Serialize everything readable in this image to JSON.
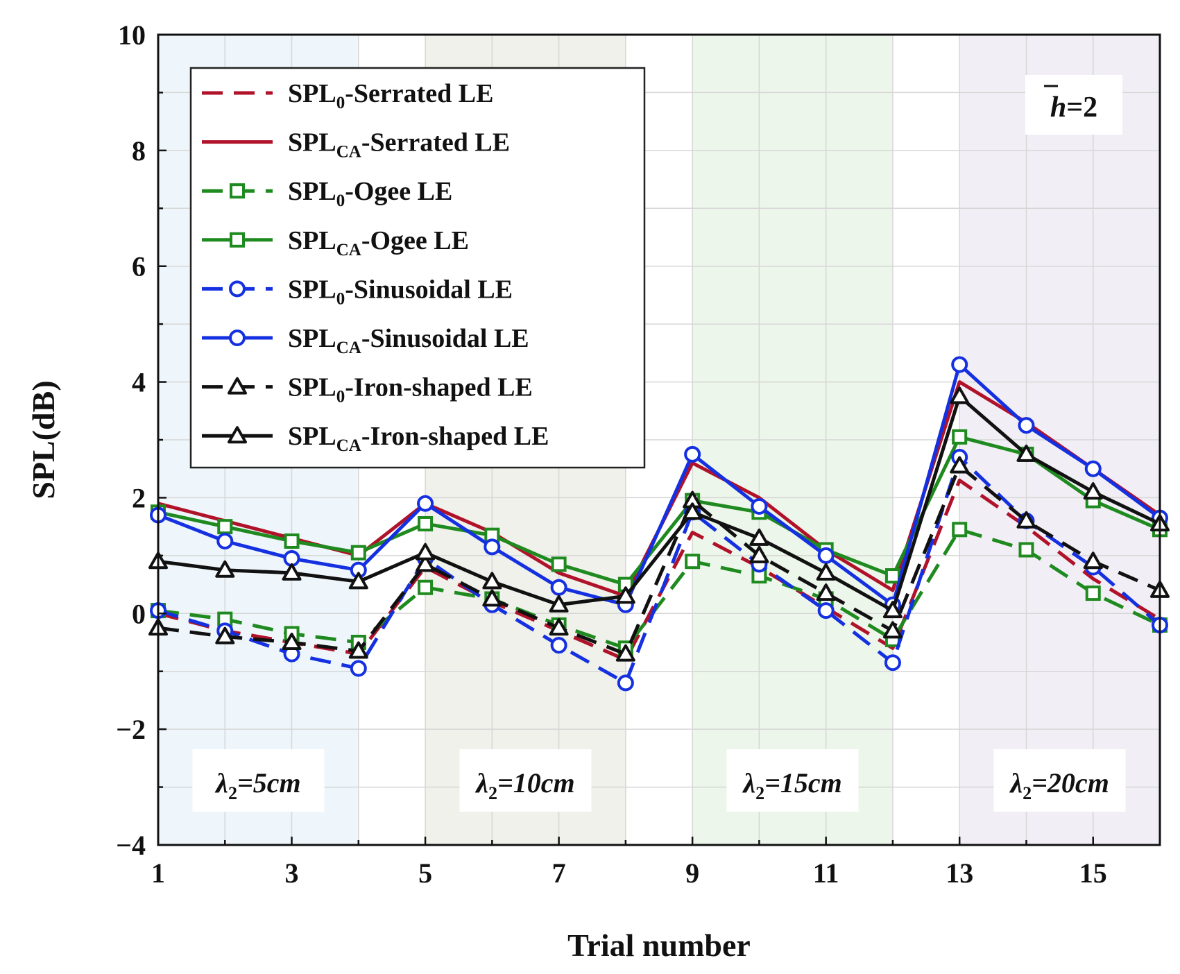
{
  "chart_data": {
    "type": "line",
    "title": "",
    "xlabel": "Trial number",
    "ylabel": "SPL(dB)",
    "xlim": [
      1,
      16
    ],
    "ylim": [
      -4,
      10
    ],
    "x_ticks": [
      1,
      3,
      5,
      7,
      9,
      11,
      13,
      15
    ],
    "y_ticks": [
      -4,
      -2,
      0,
      2,
      4,
      6,
      8,
      10
    ],
    "grid": true,
    "legend_position": "top-left",
    "x": [
      1,
      2,
      3,
      4,
      5,
      6,
      7,
      8,
      9,
      10,
      11,
      12,
      13,
      14,
      15,
      16
    ],
    "series": [
      {
        "name": "SPL0-Serrated LE",
        "sub": "0",
        "shape": "Serrated",
        "color": "#b0122a",
        "dashed": true,
        "marker": "none",
        "values": [
          0.0,
          -0.3,
          -0.5,
          -0.7,
          0.8,
          0.2,
          -0.3,
          -0.8,
          1.4,
          0.8,
          0.1,
          -0.6,
          2.3,
          1.5,
          0.6,
          -0.1
        ]
      },
      {
        "name": "SPLCA-Serrated LE",
        "sub": "CA",
        "shape": "Serrated",
        "color": "#b0122a",
        "dashed": false,
        "marker": "none",
        "values": [
          1.9,
          1.6,
          1.3,
          1.0,
          1.9,
          1.4,
          0.7,
          0.3,
          2.6,
          2.0,
          1.1,
          0.4,
          4.0,
          3.3,
          2.5,
          1.7
        ]
      },
      {
        "name": "SPL0-Ogee LE",
        "sub": "0",
        "shape": "Ogee",
        "color": "#1f8a1f",
        "dashed": true,
        "marker": "square",
        "values": [
          0.05,
          -0.1,
          -0.35,
          -0.5,
          0.45,
          0.25,
          -0.2,
          -0.6,
          0.9,
          0.65,
          0.25,
          -0.45,
          1.45,
          1.1,
          0.35,
          -0.2
        ]
      },
      {
        "name": "SPLCA-Ogee LE",
        "sub": "CA",
        "shape": "Ogee",
        "color": "#1f8a1f",
        "dashed": false,
        "marker": "square",
        "values": [
          1.75,
          1.5,
          1.25,
          1.05,
          1.55,
          1.35,
          0.85,
          0.5,
          1.95,
          1.75,
          1.1,
          0.65,
          3.05,
          2.75,
          1.95,
          1.45
        ]
      },
      {
        "name": "SPL0-Sinusoidal LE",
        "sub": "0",
        "shape": "Sinusoidal",
        "color": "#1430e0",
        "dashed": true,
        "marker": "circle",
        "values": [
          0.05,
          -0.3,
          -0.7,
          -0.95,
          0.95,
          0.15,
          -0.55,
          -1.2,
          1.75,
          0.85,
          0.05,
          -0.85,
          2.7,
          1.6,
          0.8,
          -0.2
        ]
      },
      {
        "name": "SPLCA-Sinusoidal LE",
        "sub": "CA",
        "shape": "Sinusoidal",
        "color": "#1430e0",
        "dashed": false,
        "marker": "circle",
        "values": [
          1.7,
          1.25,
          0.95,
          0.75,
          1.9,
          1.15,
          0.45,
          0.15,
          2.75,
          1.85,
          1.0,
          0.15,
          4.3,
          3.25,
          2.5,
          1.65
        ]
      },
      {
        "name": "SPL0-Iron-shaped LE",
        "sub": "0",
        "shape": "Iron-shaped",
        "color": "#111111",
        "dashed": true,
        "marker": "triangle",
        "values": [
          -0.25,
          -0.4,
          -0.5,
          -0.65,
          0.85,
          0.25,
          -0.25,
          -0.7,
          1.95,
          1.0,
          0.35,
          -0.3,
          2.55,
          1.6,
          0.9,
          0.4
        ]
      },
      {
        "name": "SPLCA-Iron-shaped LE",
        "sub": "CA",
        "shape": "Iron-shaped",
        "color": "#111111",
        "dashed": false,
        "marker": "triangle",
        "values": [
          0.9,
          0.75,
          0.7,
          0.55,
          1.05,
          0.55,
          0.15,
          0.3,
          1.75,
          1.3,
          0.7,
          0.05,
          3.75,
          2.75,
          2.1,
          1.55
        ]
      }
    ],
    "regions": [
      {
        "label_var": "λ",
        "label_sub": "2",
        "label_val": "=5cm",
        "x_start": 1,
        "x_end": 4,
        "color": "#eef6fb"
      },
      {
        "label_var": "λ",
        "label_sub": "2",
        "label_val": "=10cm",
        "x_start": 5,
        "x_end": 8,
        "color": "#eff1ea"
      },
      {
        "label_var": "λ",
        "label_sub": "2",
        "label_val": "=15cm",
        "x_start": 9,
        "x_end": 12,
        "color": "#edf6ea"
      },
      {
        "label_var": "λ",
        "label_sub": "2",
        "label_val": "=20cm",
        "x_start": 13,
        "x_end": 16,
        "color": "#f1eff5"
      }
    ],
    "annotation": {
      "var": "h",
      "value": "=2"
    }
  }
}
